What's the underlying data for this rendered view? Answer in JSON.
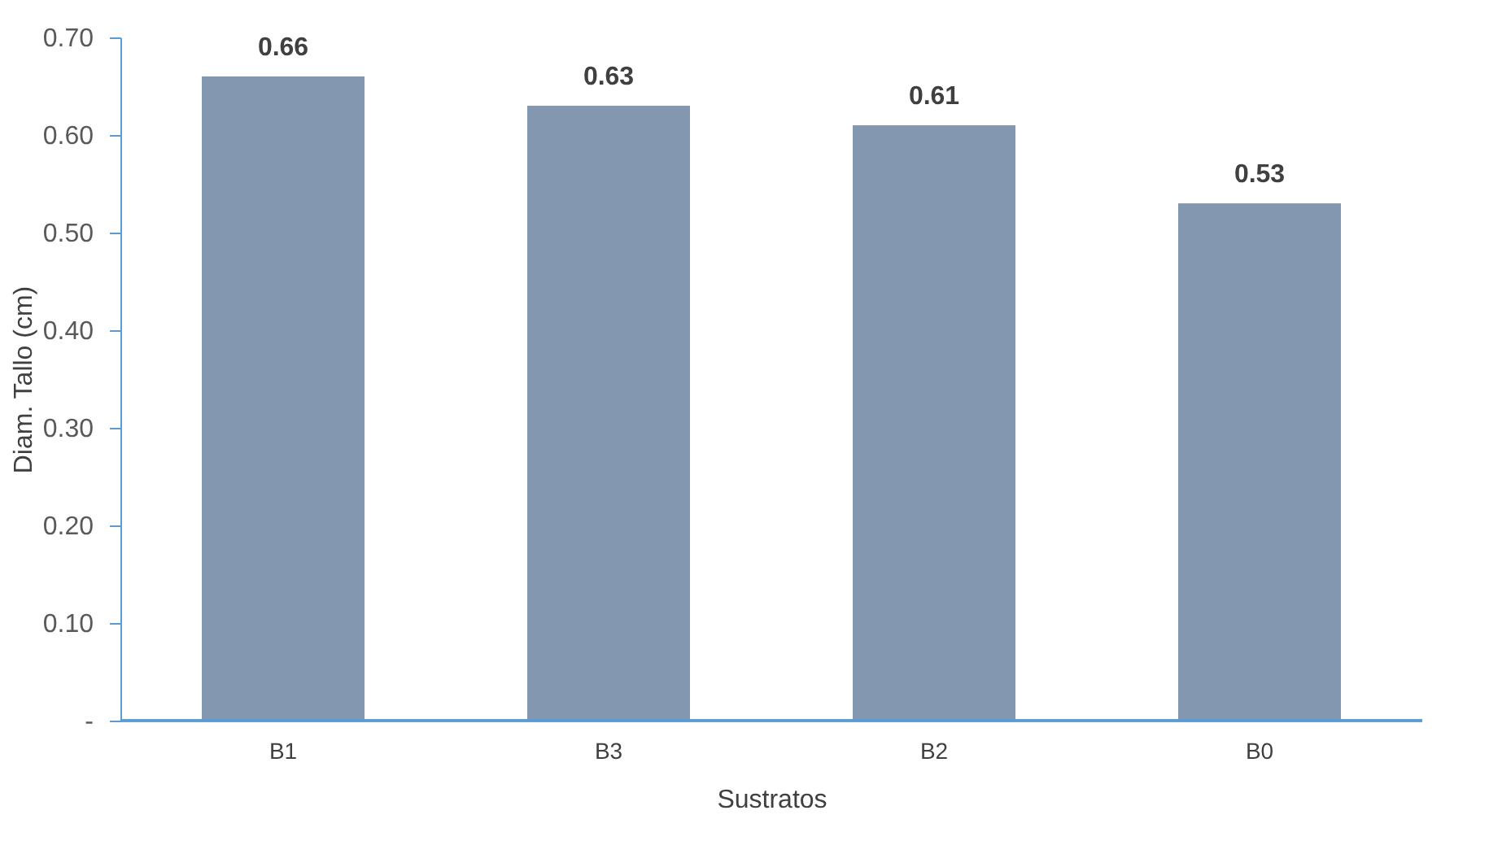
{
  "chart_data": {
    "type": "bar",
    "xlabel": "Sustratos",
    "ylabel": "Diam. Tallo (cm)",
    "categories": [
      "B1",
      "B3",
      "B2",
      "B0"
    ],
    "values": [
      0.66,
      0.63,
      0.61,
      0.53
    ],
    "color": "#8497b0",
    "ylim": [
      0,
      0.7
    ],
    "yticks": [
      {
        "value": 0,
        "label": "-"
      },
      {
        "value": 0.1,
        "label": "0.10"
      },
      {
        "value": 0.2,
        "label": "0.20"
      },
      {
        "value": 0.3,
        "label": "0.30"
      },
      {
        "value": 0.4,
        "label": "0.40"
      },
      {
        "value": 0.5,
        "label": "0.50"
      },
      {
        "value": 0.6,
        "label": "0.60"
      },
      {
        "value": 0.7,
        "label": "0.70"
      }
    ],
    "data_labels": true,
    "grid": false
  }
}
